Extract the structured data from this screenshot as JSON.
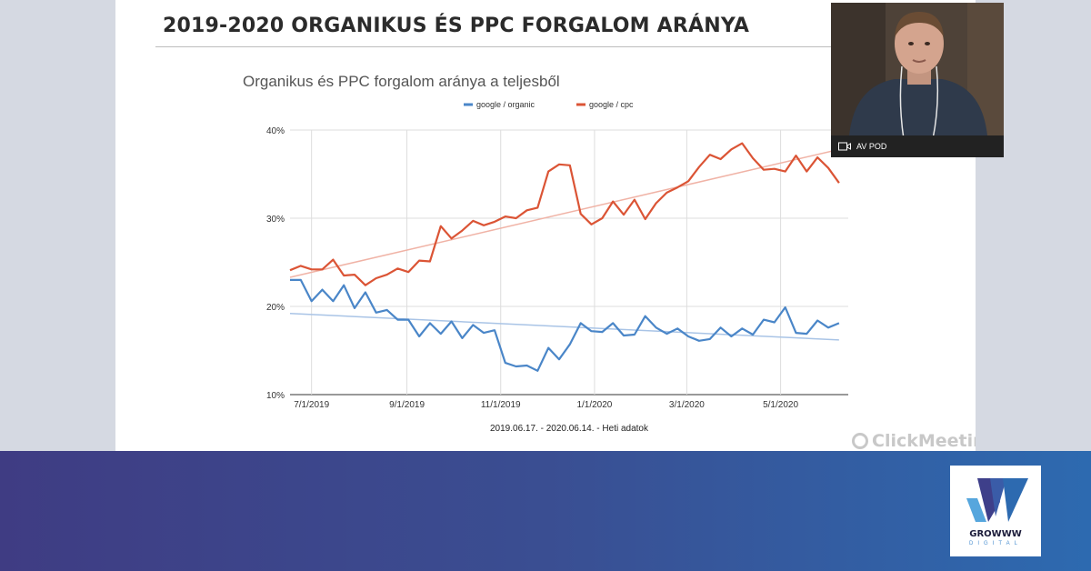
{
  "slide": {
    "title": "2019-2020 ORGANIKUS ÉS PPC FORGALOM ARÁNYA"
  },
  "chart_data": {
    "type": "line",
    "title": "Organikus és PPC forgalom aránya a teljesből",
    "xlabel": "2019.06.17. - 2020.06.14. - Heti adatok",
    "ylabel": "",
    "ylim": [
      10,
      40
    ],
    "yticks": [
      10,
      20,
      30,
      40
    ],
    "ytick_labels": [
      "10%",
      "20%",
      "30%",
      "40%"
    ],
    "xlim": [
      "2019-06-17",
      "2020-06-14"
    ],
    "xticks": [
      "2019-07-01",
      "2019-09-01",
      "2019-11-01",
      "2020-01-01",
      "2020-03-01",
      "2020-05-01"
    ],
    "xtick_labels": [
      "7/1/2019",
      "9/1/2019",
      "11/1/2019",
      "1/1/2020",
      "3/1/2020",
      "5/1/2020"
    ],
    "grid": true,
    "legend_position": "top-center",
    "x": [
      "2019-06-17",
      "2019-06-24",
      "2019-07-01",
      "2019-07-08",
      "2019-07-15",
      "2019-07-22",
      "2019-07-29",
      "2019-08-05",
      "2019-08-12",
      "2019-08-19",
      "2019-08-26",
      "2019-09-02",
      "2019-09-09",
      "2019-09-16",
      "2019-09-23",
      "2019-09-30",
      "2019-10-07",
      "2019-10-14",
      "2019-10-21",
      "2019-10-28",
      "2019-11-04",
      "2019-11-11",
      "2019-11-18",
      "2019-11-25",
      "2019-12-02",
      "2019-12-09",
      "2019-12-16",
      "2019-12-23",
      "2019-12-30",
      "2020-01-06",
      "2020-01-13",
      "2020-01-20",
      "2020-01-27",
      "2020-02-03",
      "2020-02-10",
      "2020-02-17",
      "2020-02-24",
      "2020-03-02",
      "2020-03-09",
      "2020-03-16",
      "2020-03-23",
      "2020-03-30",
      "2020-04-06",
      "2020-04-13",
      "2020-04-20",
      "2020-04-27",
      "2020-05-04",
      "2020-05-11",
      "2020-05-18",
      "2020-05-25",
      "2020-06-01",
      "2020-06-08"
    ],
    "series": [
      {
        "name": "google / organic",
        "color": "#4a86c8",
        "trend_color": "#a9c4e6",
        "trendline": [
          19.2,
          16.2
        ],
        "values": [
          23.0,
          23.0,
          20.6,
          21.9,
          20.6,
          22.4,
          19.8,
          21.6,
          19.3,
          19.6,
          18.5,
          18.5,
          16.6,
          18.1,
          16.9,
          18.3,
          16.4,
          17.9,
          17.0,
          17.3,
          13.6,
          13.2,
          13.3,
          12.7,
          15.3,
          14.0,
          15.7,
          18.1,
          17.2,
          17.1,
          18.1,
          16.7,
          16.8,
          18.9,
          17.6,
          16.9,
          17.5,
          16.6,
          16.1,
          16.3,
          17.6,
          16.6,
          17.5,
          16.8,
          18.5,
          18.2,
          19.9,
          17.0,
          16.9,
          18.4,
          17.6,
          18.1
        ]
      },
      {
        "name": "google / cpc",
        "color": "#db5435",
        "trend_color": "#f0b3a6",
        "trendline": [
          23.3,
          37.8
        ],
        "values": [
          24.1,
          24.6,
          24.2,
          24.2,
          25.3,
          23.5,
          23.6,
          22.4,
          23.2,
          23.6,
          24.3,
          23.9,
          25.2,
          25.1,
          29.1,
          27.7,
          28.6,
          29.7,
          29.2,
          29.6,
          30.2,
          30.0,
          30.9,
          31.2,
          35.3,
          36.1,
          36.0,
          30.5,
          29.3,
          30.0,
          31.9,
          30.4,
          32.1,
          29.9,
          31.7,
          32.9,
          33.5,
          34.2,
          35.8,
          37.2,
          36.7,
          37.8,
          38.5,
          36.8,
          35.5,
          35.6,
          35.3,
          37.1,
          35.3,
          36.9,
          35.7,
          34.0
        ]
      }
    ]
  },
  "webcam": {
    "participant_name": "AV POD"
  },
  "watermark": {
    "text": "ClickMeeting"
  },
  "logo": {
    "wordmark": "GROWWW",
    "subtitle": "DIGITAL"
  }
}
